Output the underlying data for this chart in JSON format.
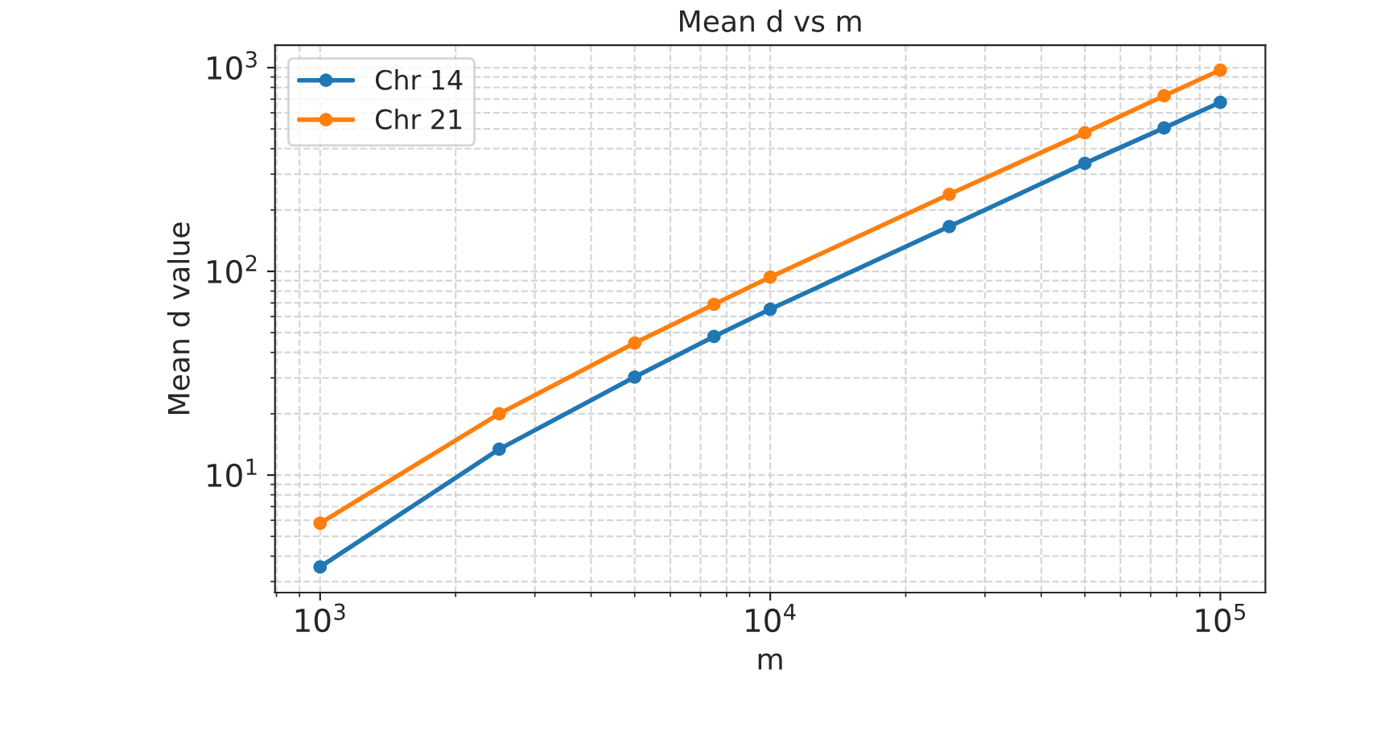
{
  "chart_data": {
    "type": "line",
    "title": "Mean d vs m",
    "xlabel": "m",
    "ylabel": "Mean d value",
    "x": [
      1000,
      2500,
      5000,
      7500,
      10000,
      25000,
      50000,
      75000,
      100000
    ],
    "series": [
      {
        "name": "Chr 14",
        "color": "#1f77b4",
        "values": [
          3.54,
          13.4,
          30.3,
          47.9,
          65.2,
          166,
          339,
          506,
          676
        ]
      },
      {
        "name": "Chr 21",
        "color": "#ff7f0e",
        "values": [
          5.8,
          20,
          44.5,
          68.9,
          93.7,
          239,
          479,
          728,
          973
        ]
      }
    ],
    "log": "xy",
    "xlim": [
      794,
      125900
    ],
    "ylim": [
      2.65,
      1290
    ],
    "xticks": [
      {
        "value": 1000,
        "label": "10$^{3}$"
      },
      {
        "value": 10000,
        "label": "10$^{4}$"
      },
      {
        "value": 100000,
        "label": "10$^{5}$"
      }
    ],
    "yticks": [
      {
        "value": 10,
        "label": "10$^{1}$"
      },
      {
        "value": 100,
        "label": "10$^{2}$"
      },
      {
        "value": 1000,
        "label": "10$^{3}$"
      }
    ],
    "grid": true,
    "legend": "top left",
    "marker": "circle",
    "line_style": "solid"
  }
}
